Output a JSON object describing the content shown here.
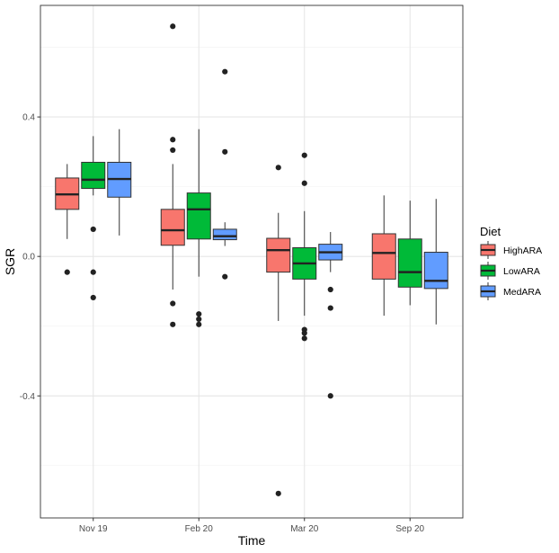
{
  "chart_data": {
    "type": "boxplot",
    "xlabel": "Time",
    "ylabel": "SGR",
    "categories": [
      "Nov 19",
      "Feb 20",
      "Mar 20",
      "Sep 20"
    ],
    "y_ticks": [
      -0.4,
      0.0,
      0.4
    ],
    "y_tick_labels": [
      "-0.4",
      "0.0",
      "0.4"
    ],
    "ylim": [
      -0.75,
      0.72
    ],
    "grid": true,
    "legend": {
      "title": "Diet",
      "position": "right",
      "entries": [
        "HighARA",
        "LowARA",
        "MedARA"
      ]
    },
    "series": [
      {
        "name": "HighARA",
        "color": "#F8766D",
        "boxes": [
          {
            "category": "Nov 19",
            "whisker_low": 0.05,
            "q1": 0.135,
            "median": 0.178,
            "q3": 0.225,
            "whisker_high": 0.265,
            "outliers": [
              -0.045
            ]
          },
          {
            "category": "Feb 20",
            "whisker_low": -0.095,
            "q1": 0.032,
            "median": 0.075,
            "q3": 0.135,
            "whisker_high": 0.265,
            "outliers": [
              0.66,
              0.335,
              0.305,
              -0.135,
              -0.195
            ]
          },
          {
            "category": "Mar 20",
            "whisker_low": -0.185,
            "q1": -0.045,
            "median": 0.018,
            "q3": 0.052,
            "whisker_high": 0.125,
            "outliers": [
              0.255,
              -0.68
            ]
          },
          {
            "category": "Sep 20",
            "whisker_low": -0.17,
            "q1": -0.065,
            "median": 0.01,
            "q3": 0.065,
            "whisker_high": 0.175,
            "outliers": []
          }
        ]
      },
      {
        "name": "LowARA",
        "color": "#00BA38",
        "boxes": [
          {
            "category": "Nov 19",
            "whisker_low": 0.175,
            "q1": 0.195,
            "median": 0.22,
            "q3": 0.27,
            "whisker_high": 0.345,
            "outliers": [
              0.078,
              -0.045,
              -0.118
            ]
          },
          {
            "category": "Feb 20",
            "whisker_low": -0.058,
            "q1": 0.05,
            "median": 0.135,
            "q3": 0.182,
            "whisker_high": 0.365,
            "outliers": [
              -0.165,
              -0.18,
              -0.195
            ]
          },
          {
            "category": "Mar 20",
            "whisker_low": -0.17,
            "q1": -0.065,
            "median": -0.02,
            "q3": 0.025,
            "whisker_high": 0.13,
            "outliers": [
              0.29,
              0.21,
              -0.21,
              -0.22,
              -0.235
            ]
          },
          {
            "category": "Sep 20",
            "whisker_low": -0.14,
            "q1": -0.088,
            "median": -0.045,
            "q3": 0.05,
            "whisker_high": 0.16,
            "outliers": []
          }
        ]
      },
      {
        "name": "MedARA",
        "color": "#619CFF",
        "boxes": [
          {
            "category": "Nov 19",
            "whisker_low": 0.06,
            "q1": 0.17,
            "median": 0.222,
            "q3": 0.27,
            "whisker_high": 0.365,
            "outliers": []
          },
          {
            "category": "Feb 20",
            "whisker_low": 0.03,
            "q1": 0.048,
            "median": 0.058,
            "q3": 0.078,
            "whisker_high": 0.098,
            "outliers": [
              0.53,
              0.3,
              -0.058
            ]
          },
          {
            "category": "Mar 20",
            "whisker_low": -0.045,
            "q1": -0.01,
            "median": 0.012,
            "q3": 0.035,
            "whisker_high": 0.07,
            "outliers": [
              -0.095,
              -0.148,
              -0.4
            ]
          },
          {
            "category": "Sep 20",
            "whisker_low": -0.195,
            "q1": -0.092,
            "median": -0.07,
            "q3": 0.012,
            "whisker_high": 0.165,
            "outliers": []
          }
        ]
      }
    ]
  }
}
